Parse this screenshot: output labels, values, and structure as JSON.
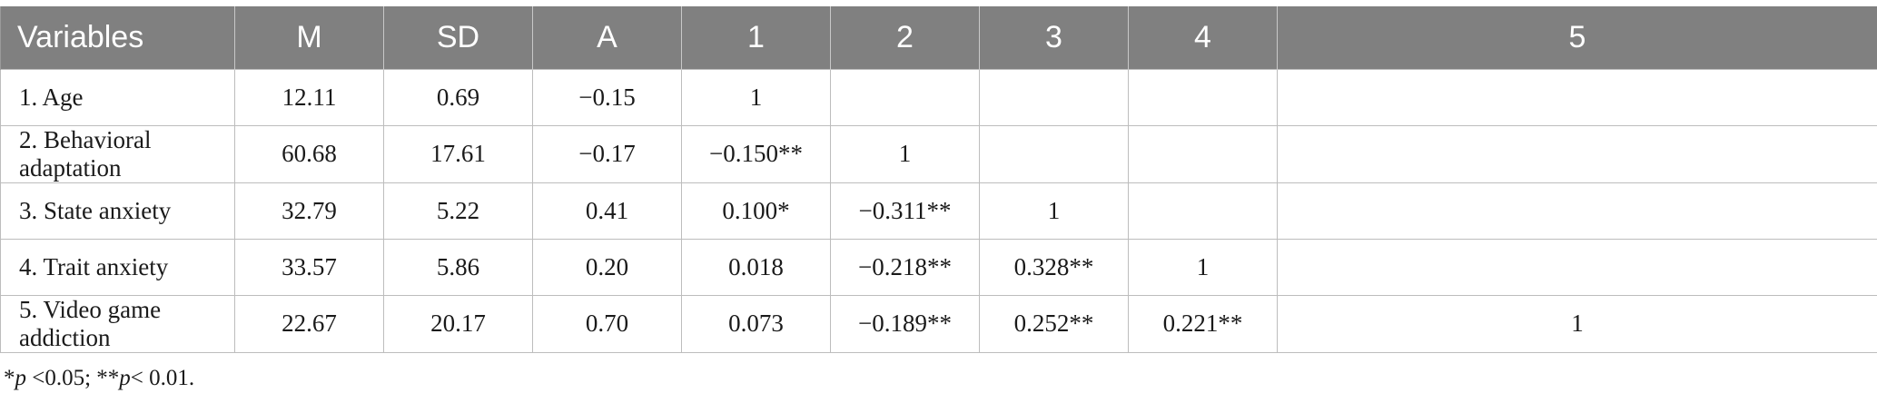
{
  "table": {
    "headers": [
      "Variables",
      "M",
      "SD",
      "A",
      "1",
      "2",
      "3",
      "4",
      "5"
    ],
    "rows": [
      [
        "1. Age",
        "12.11",
        "0.69",
        "−0.15",
        "1",
        "",
        "",
        "",
        ""
      ],
      [
        "2. Behavioral adaptation",
        "60.68",
        "17.61",
        "−0.17",
        "−0.150**",
        "1",
        "",
        "",
        ""
      ],
      [
        "3. State anxiety",
        "32.79",
        "5.22",
        "0.41",
        "0.100*",
        "−0.311**",
        "1",
        "",
        ""
      ],
      [
        "4. Trait anxiety",
        "33.57",
        "5.86",
        "0.20",
        "0.018",
        "−0.218**",
        "0.328**",
        "1",
        ""
      ],
      [
        "5. Video game addiction",
        "22.67",
        "20.17",
        "0.70",
        "0.073",
        "−0.189**",
        "0.252**",
        "0.221**",
        "1"
      ]
    ]
  },
  "footnote": {
    "star1": "*",
    "p1": "p",
    "t1": " <0.05; ",
    "star2": "**",
    "p2": "p",
    "t2": "< 0.01."
  }
}
